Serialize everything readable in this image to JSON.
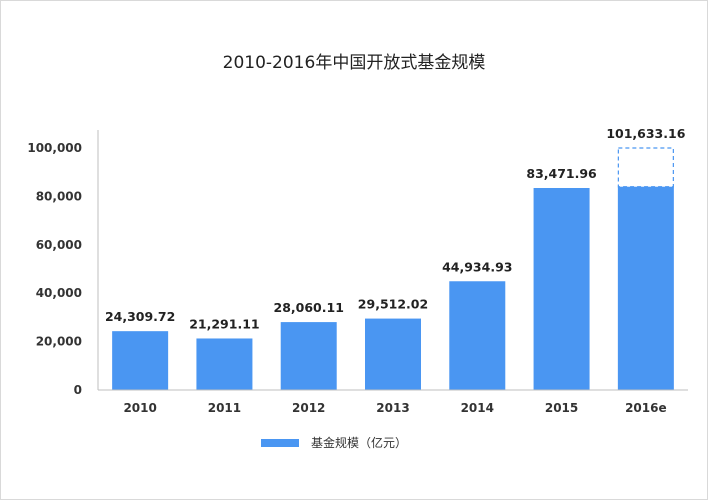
{
  "chart_data": {
    "type": "bar",
    "title": "2010-2016年中国开放式基金规模",
    "xlabel": "",
    "ylabel": "",
    "categories": [
      "2010",
      "2011",
      "2012",
      "2013",
      "2014",
      "2015",
      "2016e"
    ],
    "series": [
      {
        "name": "基金规模（亿元）",
        "values": [
          24309.72,
          21291.11,
          28060.11,
          29512.02,
          44934.93,
          83471.96,
          101633.16
        ],
        "labels": [
          "24,309.72",
          "21,291.11",
          "28,060.11",
          "29,512.02",
          "44,934.93",
          "83,471.96",
          "101,633.16"
        ]
      }
    ],
    "ylim": [
      0,
      100000
    ],
    "yticks": [
      0,
      20000,
      40000,
      60000,
      80000,
      100000
    ],
    "ytick_labels": [
      "0",
      "20,000",
      "40,000",
      "60,000",
      "80,000",
      "100,000"
    ],
    "estimate_category": "2016e",
    "grid": false,
    "legend_position": "bottom-center",
    "colors": {
      "bar": "#4a96f2",
      "estimate_outline": "#4a96f2",
      "axis": "#bfbfbf"
    }
  }
}
